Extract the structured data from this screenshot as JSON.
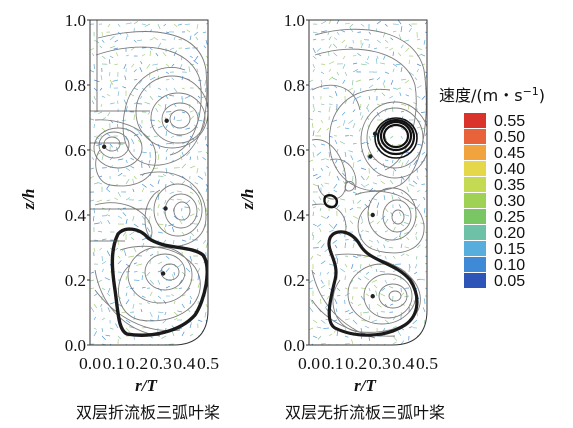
{
  "chart_data": [
    {
      "type": "streamline",
      "panel": "left",
      "caption": "双层折流板三弧叶桨",
      "xlabel_var": "r",
      "xlabel_sep": "/",
      "xlabel_den": "T",
      "ylabel_var": "z",
      "ylabel_sep": "/",
      "ylabel_den": "h",
      "xlim": [
        0.0,
        0.5
      ],
      "ylim": [
        0.0,
        1.0
      ],
      "xticks": [
        "0.0",
        "0.1",
        "0.2",
        "0.3",
        "0.4",
        "0.5"
      ],
      "yticks": [
        "0.0",
        "0.2",
        "0.4",
        "0.6",
        "0.8",
        "1.0"
      ],
      "vortex_centers": [
        {
          "r": 0.325,
          "z": 0.69
        },
        {
          "r": 0.06,
          "z": 0.61
        },
        {
          "r": 0.32,
          "z": 0.42
        },
        {
          "r": 0.31,
          "z": 0.22
        }
      ]
    },
    {
      "type": "streamline",
      "panel": "right",
      "caption": "双层无折流板三弧叶桨",
      "xlabel_var": "r",
      "xlabel_sep": "/",
      "xlabel_den": "T",
      "ylabel_var": "z",
      "ylabel_sep": "/",
      "ylabel_den": "h",
      "xlim": [
        0.0,
        0.5
      ],
      "ylim": [
        0.0,
        1.0
      ],
      "xticks": [
        "0.0",
        "0.1",
        "0.2",
        "0.3",
        "0.4",
        "0.5"
      ],
      "yticks": [
        "0.0",
        "0.2",
        "0.4",
        "0.6",
        "0.8",
        "1.0"
      ],
      "vortex_centers": [
        {
          "r": 0.28,
          "z": 0.65
        },
        {
          "r": 0.26,
          "z": 0.58
        },
        {
          "r": 0.27,
          "z": 0.4
        },
        {
          "r": 0.27,
          "z": 0.15
        }
      ]
    }
  ],
  "legend": {
    "title": "速度/(m・s",
    "title_sup": "−1",
    "title_end": ")",
    "entries": [
      {
        "label": "0.55",
        "color": "#d9332b"
      },
      {
        "label": "0.50",
        "color": "#e8623a"
      },
      {
        "label": "0.45",
        "color": "#f1a43e"
      },
      {
        "label": "0.40",
        "color": "#e4d84a"
      },
      {
        "label": "0.35",
        "color": "#c4da52"
      },
      {
        "label": "0.30",
        "color": "#9fd155"
      },
      {
        "label": "0.25",
        "color": "#7ac664"
      },
      {
        "label": "0.20",
        "color": "#6cc1a7"
      },
      {
        "label": "0.15",
        "color": "#57aedc"
      },
      {
        "label": "0.10",
        "color": "#3f8ad6"
      },
      {
        "label": "0.05",
        "color": "#2d55b8"
      }
    ]
  }
}
